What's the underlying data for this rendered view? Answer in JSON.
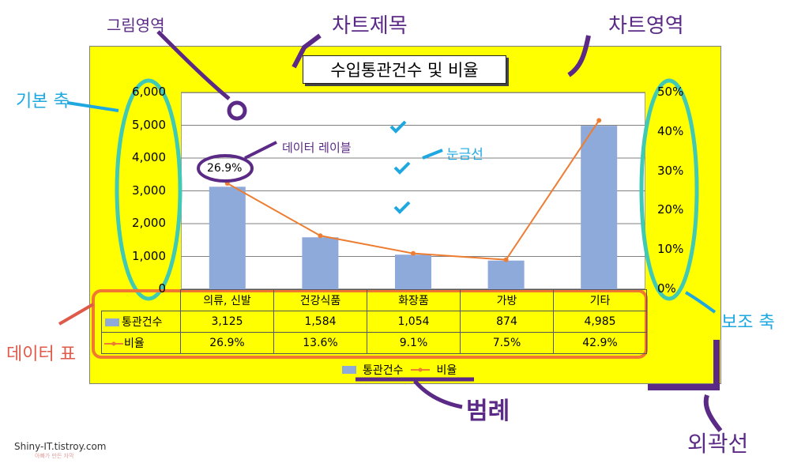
{
  "chart_data": {
    "type": "bar",
    "title": "수입통관건수 및 비율",
    "categories": [
      "의류, 신발",
      "건강식품",
      "화장품",
      "가방",
      "기타"
    ],
    "series": [
      {
        "name": "통관건수",
        "type": "bar",
        "axis": "primary",
        "values": [
          3125,
          1584,
          1054,
          874,
          4985
        ]
      },
      {
        "name": "비율",
        "type": "line",
        "axis": "secondary",
        "values": [
          26.9,
          13.6,
          9.1,
          7.5,
          42.9
        ]
      }
    ],
    "y_ticks": [
      "0",
      "1,000",
      "2,000",
      "3,000",
      "4,000",
      "5,000",
      "6,000"
    ],
    "y2_ticks": [
      "0%",
      "10%",
      "20%",
      "30%",
      "40%",
      "50%"
    ],
    "ylim": [
      0,
      6000
    ],
    "y2lim": [
      0,
      50
    ],
    "data_label": "26.9%",
    "grid": true,
    "legend_position": "bottom",
    "data_table": {
      "rows": [
        {
          "label": "통관건수",
          "cells": [
            "3,125",
            "1,584",
            "1,054",
            "874",
            "4,985"
          ]
        },
        {
          "label": "비율",
          "cells": [
            "26.9%",
            "13.6%",
            "9.1%",
            "7.5%",
            "42.9%"
          ]
        }
      ]
    }
  },
  "annotations": {
    "plot_area": "그림영역",
    "chart_title": "차트제목",
    "chart_area": "차트영역",
    "primary_axis": "기본 축",
    "data_label": "데이터 레이블",
    "gridlines": "눈금선",
    "secondary_axis": "보조 축",
    "data_table": "데이터 표",
    "legend": "범례",
    "border": "외곽선"
  },
  "watermark": "Shiny-IT.tistroy.com",
  "watermark_sub": "아빠가 만든 자막",
  "colors": {
    "chart_bg": "#ffff00",
    "bar": "#8eaadb",
    "line": "#ed7d31",
    "annot_purple": "#5b2a86",
    "annot_blue": "#1fa8e0",
    "annot_red": "#e05a4a",
    "annot_orange_outline": "#f07830",
    "annot_teal": "#40c9b4"
  }
}
